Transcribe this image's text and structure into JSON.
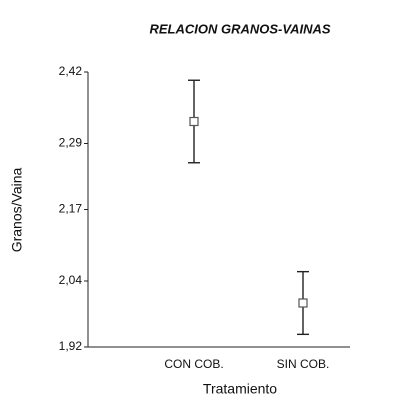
{
  "chart_data": {
    "type": "errorbar",
    "title": "RELACION GRANOS-VAINAS",
    "xlabel": "Tratamiento",
    "ylabel": "Granos/Vaina",
    "categories": [
      "CON COB.",
      "SIN COB."
    ],
    "values": [
      2.33,
      2.0
    ],
    "errors": [
      0.075,
      0.057
    ],
    "color": "#222222",
    "ylim": [
      1.92,
      2.42
    ],
    "yticks": [
      {
        "value": 1.92,
        "label": "1,92"
      },
      {
        "value": 2.04,
        "label": "2,04"
      },
      {
        "value": 2.17,
        "label": "2,17"
      },
      {
        "value": 2.29,
        "label": "2,29"
      },
      {
        "value": 2.42,
        "label": "2,42"
      }
    ]
  }
}
